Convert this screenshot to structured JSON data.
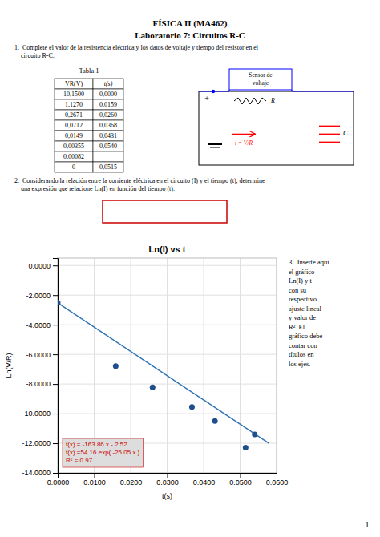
{
  "page": {
    "title_line1": "FÍSICA II (MA462)",
    "title_line2": "Laboratorio 7: Circuitos R-C",
    "q1_line1": "1.  Complete el valor de la resistencia eléctrica y los datos de voltaje y tiempo del resistor en el",
    "q1_line2": "    circuito R-C.",
    "q2_line1": "2.  Considerando la relación entre la corriente eléctrica en el circuito (I) y el tiempo (t), determine",
    "q2_line2": "    una expresión que relacione Ln(I) en función del tiempo (t).",
    "q3_text": "3.  Inserte aquí\nel gráfico\nLn(I) y t\ncon su\nrespectivo\najuste lineal\ny valor de\nR². El\ngráfico debe\ncontar con\ntítulos en\nlos ejes.",
    "page_num": "1",
    "table": {
      "title": "Tabla 1",
      "header_vr": "VR(V)",
      "header_t": "t(s)",
      "rows": [
        [
          "10,1500",
          "0,0000"
        ],
        [
          "1,1270",
          "0,0159"
        ],
        [
          "0,2671",
          "0,0260"
        ],
        [
          "0,0712",
          "0,0368"
        ],
        [
          "0,0149",
          "0,0431"
        ],
        [
          "0,00355",
          "0,0540"
        ],
        [
          "0,00082",
          ""
        ],
        [
          "0",
          "0,0515"
        ]
      ]
    },
    "circuit": {
      "sensor_label": [
        "Sensor de",
        "voltaje"
      ],
      "resistor_label": "R",
      "plus_label": "+",
      "current_label": "i = V/R",
      "capacitor_label": "C"
    },
    "answer_box": {
      "color": "#cc0000"
    },
    "background": {
      "color": "#ffffff"
    }
  },
  "chart_data": {
    "type": "scatter",
    "title": "Ln(I) vs t",
    "x_label": "t(s)",
    "y_label": "Ln(V/R)",
    "xlim": [
      0.0,
      0.06
    ],
    "ylim": [
      -14.0,
      0.5
    ],
    "xticks": [
      {
        "value": 0.0,
        "label": "0.0000"
      },
      {
        "value": 0.01,
        "label": "0.0100"
      },
      {
        "value": 0.02,
        "label": "0.0200"
      },
      {
        "value": 0.03,
        "label": "0.0300"
      },
      {
        "value": 0.04,
        "label": "0.0400"
      },
      {
        "value": 0.05,
        "label": "0.0500"
      },
      {
        "value": 0.06,
        "label": "0.0600"
      }
    ],
    "yticks": [
      {
        "value": 0.0,
        "label": "0.0000"
      },
      {
        "value": -2.0,
        "label": "-2.0000"
      },
      {
        "value": -4.0,
        "label": "-4.0000"
      },
      {
        "value": -6.0,
        "label": "-6.0000"
      },
      {
        "value": -8.0,
        "label": "-8.0000"
      },
      {
        "value": -10.0,
        "label": "-10.0000"
      },
      {
        "value": -12.0,
        "label": "-12.0000"
      },
      {
        "value": -14.0,
        "label": "-14.0000"
      }
    ],
    "grid": true,
    "annotations": [
      "f(x) = -163.86 x - 2.52",
      "f(x) =54.16 exp( -25.05 x )",
      "R² = 0.97"
    ],
    "series": [
      {
        "type": "scatter",
        "color": "#1f4e8c",
        "x": [
          0.0,
          0.0159,
          0.026,
          0.0368,
          0.0431,
          0.0515,
          0.054
        ],
        "values": [
          -2.52,
          -6.79,
          -8.23,
          -9.55,
          -10.5,
          -12.3,
          -11.4
        ]
      },
      {
        "type": "line",
        "color": "#2e75b6",
        "x": [
          0.0,
          0.058
        ],
        "values": [
          -2.52,
          -12.02388
        ]
      }
    ]
  }
}
